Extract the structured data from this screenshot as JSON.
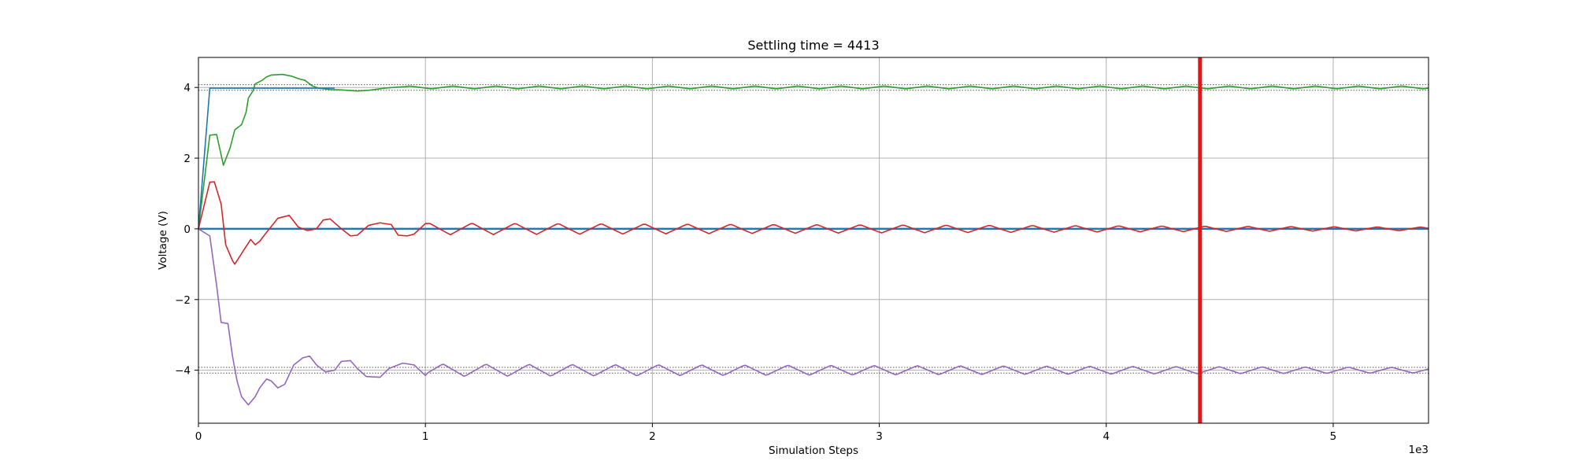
{
  "chart_data": {
    "type": "line",
    "title": "Settling time = 4413",
    "xlabel": "Simulation Steps",
    "ylabel": "Voltage (V)",
    "x_offset_label": "1e3",
    "xlim": [
      0,
      5.42
    ],
    "ylim": [
      -5.5,
      4.85
    ],
    "x_ticks": [
      0,
      1,
      2,
      3,
      4,
      5
    ],
    "x_tick_labels": [
      "0",
      "1",
      "2",
      "3",
      "4",
      "5"
    ],
    "y_ticks": [
      -4,
      -2,
      0,
      2,
      4
    ],
    "y_tick_labels": [
      "−4",
      "−2",
      "0",
      "2",
      "4"
    ],
    "grid": true,
    "settling_marker": {
      "x": 4.413,
      "color": "#ee1111"
    },
    "tolerance_bands": [
      {
        "center": 4,
        "half_width": 0.08,
        "color": "#555555"
      },
      {
        "center": -4,
        "half_width": 0.08,
        "color": "#555555"
      }
    ],
    "series": [
      {
        "color": "#2ca02c",
        "kind": "green",
        "points": [
          [
            0,
            0
          ],
          [
            0.05,
            2.65
          ],
          [
            0.08,
            2.67
          ],
          [
            0.11,
            1.8
          ],
          [
            0.14,
            2.3
          ],
          [
            0.16,
            2.8
          ],
          [
            0.19,
            2.95
          ],
          [
            0.21,
            3.3
          ],
          [
            0.22,
            3.7
          ],
          [
            0.24,
            3.9
          ],
          [
            0.25,
            4.1
          ],
          [
            0.28,
            4.2
          ],
          [
            0.3,
            4.3
          ],
          [
            0.32,
            4.35
          ],
          [
            0.37,
            4.37
          ],
          [
            0.41,
            4.32
          ],
          [
            0.44,
            4.25
          ],
          [
            0.47,
            4.2
          ],
          [
            0.5,
            4.05
          ],
          [
            0.53,
            3.98
          ],
          [
            0.58,
            3.94
          ],
          [
            0.63,
            3.93
          ],
          [
            0.7,
            3.9
          ],
          [
            0.75,
            3.92
          ],
          [
            0.82,
            3.98
          ],
          [
            0.9,
            4.02
          ]
        ],
        "steady_value": 4.0,
        "steady_start": 0.9,
        "osc_amplitude": 0.04,
        "osc_period": 0.19
      },
      {
        "color": "#1f77b4",
        "kind": "blue",
        "points": [
          [
            0,
            0
          ],
          [
            0.05,
            3.98
          ],
          [
            0.6,
            3.98
          ]
        ],
        "steady_value": 0.0,
        "steady_start": 0.0
      },
      {
        "color": "#d62728",
        "kind": "red",
        "points": [
          [
            0,
            0
          ],
          [
            0.05,
            1.32
          ],
          [
            0.07,
            1.33
          ],
          [
            0.1,
            0.7
          ],
          [
            0.12,
            -0.45
          ],
          [
            0.15,
            -0.9
          ],
          [
            0.16,
            -1.0
          ],
          [
            0.2,
            -0.6
          ],
          [
            0.23,
            -0.3
          ],
          [
            0.25,
            -0.45
          ],
          [
            0.27,
            -0.35
          ],
          [
            0.3,
            -0.1
          ],
          [
            0.35,
            0.3
          ],
          [
            0.4,
            0.38
          ],
          [
            0.44,
            0.05
          ],
          [
            0.48,
            -0.05
          ],
          [
            0.52,
            0.0
          ],
          [
            0.55,
            0.25
          ],
          [
            0.58,
            0.28
          ],
          [
            0.63,
            0.0
          ],
          [
            0.67,
            -0.2
          ],
          [
            0.7,
            -0.18
          ],
          [
            0.75,
            0.1
          ],
          [
            0.8,
            0.17
          ],
          [
            0.85,
            0.12
          ],
          [
            0.88,
            -0.18
          ],
          [
            0.92,
            -0.2
          ],
          [
            0.95,
            -0.15
          ],
          [
            1.0,
            0.15
          ]
        ],
        "steady_value": 0.0,
        "steady_start": 1.0,
        "osc_amplitude": 0.17,
        "osc_period": 0.19,
        "osc_decay_to": 0.05
      },
      {
        "color": "#9467bd",
        "kind": "purple",
        "points": [
          [
            0,
            0
          ],
          [
            0.05,
            -0.2
          ],
          [
            0.08,
            -1.6
          ],
          [
            0.1,
            -2.65
          ],
          [
            0.13,
            -2.68
          ],
          [
            0.15,
            -3.6
          ],
          [
            0.17,
            -4.3
          ],
          [
            0.19,
            -4.75
          ],
          [
            0.22,
            -4.98
          ],
          [
            0.25,
            -4.75
          ],
          [
            0.27,
            -4.5
          ],
          [
            0.3,
            -4.25
          ],
          [
            0.32,
            -4.3
          ],
          [
            0.35,
            -4.5
          ],
          [
            0.38,
            -4.4
          ],
          [
            0.42,
            -3.85
          ],
          [
            0.46,
            -3.65
          ],
          [
            0.49,
            -3.6
          ],
          [
            0.52,
            -3.85
          ],
          [
            0.56,
            -4.05
          ],
          [
            0.6,
            -4.0
          ],
          [
            0.63,
            -3.75
          ],
          [
            0.67,
            -3.73
          ],
          [
            0.7,
            -3.95
          ],
          [
            0.74,
            -4.18
          ],
          [
            0.8,
            -4.2
          ],
          [
            0.84,
            -3.95
          ],
          [
            0.9,
            -3.8
          ],
          [
            0.95,
            -3.85
          ],
          [
            1.0,
            -4.15
          ]
        ],
        "steady_value": -4.0,
        "steady_start": 1.0,
        "osc_amplitude": 0.18,
        "osc_period": 0.19,
        "osc_decay_to": 0.08
      }
    ]
  }
}
